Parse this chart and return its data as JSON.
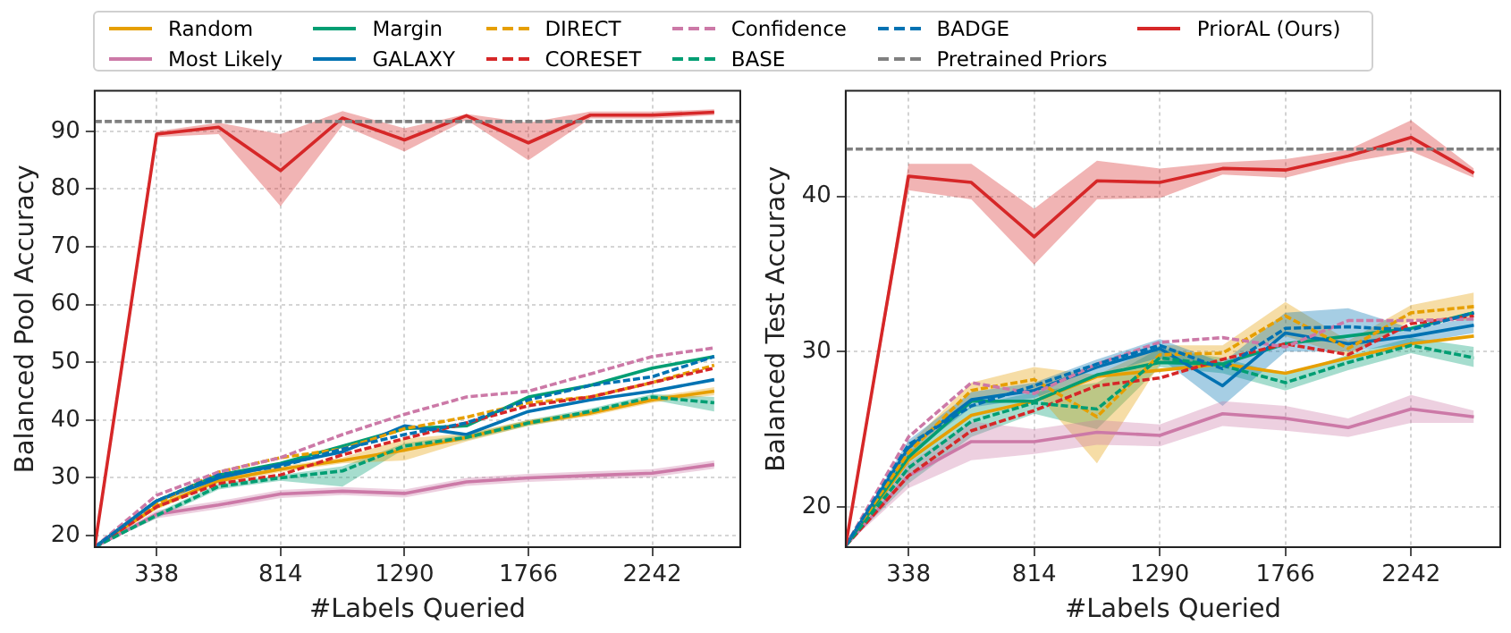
{
  "chart_data": [
    {
      "type": "line",
      "xlabel": "#Labels Queried",
      "ylabel": "Balanced Pool Accuracy",
      "legend": "top",
      "grid": true,
      "xlim": [
        100,
        2580
      ],
      "xticks": [
        338,
        814,
        1290,
        1766,
        2242
      ],
      "ylim": [
        18,
        97
      ],
      "yticks": [
        20,
        30,
        40,
        50,
        60,
        70,
        80,
        90
      ],
      "x": [
        100,
        338,
        576,
        814,
        1052,
        1290,
        1528,
        1766,
        2004,
        2242,
        2480
      ],
      "ref_lines": [
        {
          "axis": "y",
          "value": 91.7,
          "label": "Pretrained Priors",
          "color": "#808080",
          "line_style": "dashed"
        }
      ],
      "series": [
        {
          "name": "Random",
          "color": "#e69f00",
          "line_style": "solid",
          "values": [
            18,
            25,
            29.5,
            31.5,
            33,
            34.8,
            37,
            39.5,
            41.2,
            43.5,
            45
          ],
          "lower": [
            18,
            24.5,
            29,
            31,
            32.5,
            33,
            36.3,
            39,
            40.7,
            43,
            44.3
          ],
          "upper": [
            18,
            25.5,
            30,
            32,
            33.5,
            36.8,
            37.7,
            40,
            41.7,
            44,
            45.7
          ]
        },
        {
          "name": "Most Likely",
          "color": "#cc79a7",
          "line_style": "solid",
          "values": [
            18,
            23.7,
            25.3,
            27.2,
            27.7,
            27.3,
            29.3,
            30,
            30.4,
            30.8,
            32.3
          ],
          "lower": [
            18,
            23,
            24.6,
            26.5,
            27,
            26.6,
            28.6,
            29.3,
            29.7,
            30.1,
            31.6
          ],
          "upper": [
            18,
            24.4,
            26,
            27.9,
            28.4,
            28,
            30,
            30.7,
            31.1,
            31.5,
            33
          ]
        },
        {
          "name": "Margin",
          "color": "#009e73",
          "line_style": "solid",
          "values": [
            18,
            26,
            30.5,
            32.5,
            35.5,
            38.5,
            39,
            44,
            46,
            49,
            51
          ]
        },
        {
          "name": "GALAXY",
          "color": "#0072b2",
          "line_style": "solid",
          "values": [
            18,
            26,
            30,
            32.3,
            34.5,
            39,
            37.5,
            41.5,
            43.5,
            45,
            47
          ]
        },
        {
          "name": "DIRECT",
          "color": "#e69f00",
          "line_style": "dashed",
          "values": [
            18,
            25.5,
            31,
            33.5,
            35,
            38.5,
            40.5,
            43,
            44,
            46.5,
            49.5
          ]
        },
        {
          "name": "CORESET",
          "color": "#d62728",
          "line_style": "dashed",
          "values": [
            18,
            25,
            29,
            30.5,
            34,
            36.8,
            39.5,
            42.5,
            44,
            46.5,
            49
          ]
        },
        {
          "name": "Confidence",
          "color": "#cc79a7",
          "line_style": "dashed",
          "values": [
            18,
            27,
            31,
            33.5,
            37.5,
            41,
            44,
            45,
            48,
            51,
            52.5
          ]
        },
        {
          "name": "BASE",
          "color": "#009e73",
          "line_style": "dashed",
          "values": [
            18,
            23.5,
            28.5,
            30,
            31.2,
            35.5,
            37,
            39.5,
            41.5,
            44,
            43
          ],
          "lower": [
            18,
            23,
            28,
            29.5,
            28.5,
            35,
            36.5,
            39,
            41,
            43.5,
            41.5
          ],
          "upper": [
            18,
            24,
            29,
            30.5,
            32,
            36,
            37.5,
            40,
            42,
            44.5,
            44
          ]
        },
        {
          "name": "BADGE",
          "color": "#0072b2",
          "line_style": "dashed",
          "values": [
            18,
            26,
            30.5,
            32,
            35,
            37.5,
            39.5,
            43.5,
            46,
            47.5,
            51
          ]
        },
        {
          "name": "PriorAL (Ours)",
          "color": "#d62728",
          "line_style": "solid",
          "values": [
            18,
            89.5,
            90.7,
            83.2,
            92.3,
            88.5,
            92.7,
            88,
            92.8,
            92.8,
            93.3
          ],
          "lower": [
            18,
            89,
            89.5,
            77,
            91,
            86.5,
            92,
            85,
            92.2,
            92.2,
            92.8
          ],
          "upper": [
            18,
            90,
            91.5,
            89.5,
            93.5,
            90.5,
            93,
            91.5,
            93.4,
            93.4,
            93.8
          ]
        }
      ]
    },
    {
      "type": "line",
      "xlabel": "#Labels Queried",
      "ylabel": "Balanced Test Accuracy",
      "grid": true,
      "xlim": [
        100,
        2580
      ],
      "xticks": [
        338,
        814,
        1290,
        1766,
        2242
      ],
      "ylim": [
        17.4,
        46.8
      ],
      "yticks": [
        20,
        30,
        40
      ],
      "x": [
        100,
        338,
        576,
        814,
        1052,
        1290,
        1528,
        1766,
        2004,
        2242,
        2480
      ],
      "ref_lines": [
        {
          "axis": "y",
          "value": 43.05,
          "color": "#808080",
          "line_style": "dashed"
        }
      ],
      "series": [
        {
          "color": "#e69f00",
          "line_style": "solid",
          "values": [
            17.5,
            23,
            25.9,
            26.8,
            28.4,
            28.8,
            29.2,
            28.6,
            29.6,
            30.5,
            31
          ]
        },
        {
          "color": "#cc79a7",
          "line_style": "solid",
          "values": [
            17.5,
            22,
            24.2,
            24.2,
            24.8,
            24.6,
            26,
            25.7,
            25.1,
            26.3,
            25.8
          ],
          "lower": [
            17.5,
            21.2,
            23,
            23.4,
            24,
            23.9,
            25.2,
            24.9,
            24.5,
            25.4,
            25.4
          ],
          "upper": [
            17.5,
            22.8,
            25.5,
            25,
            25.6,
            25.3,
            26.8,
            26.5,
            25.7,
            27.2,
            26.2
          ]
        },
        {
          "color": "#009e73",
          "line_style": "solid",
          "values": [
            17.5,
            23.2,
            26.8,
            26.8,
            28.5,
            29.3,
            29.2,
            30.5,
            31,
            31.5,
            32.5
          ]
        },
        {
          "color": "#0072b2",
          "line_style": "solid",
          "values": [
            17.5,
            23.8,
            26.9,
            27.5,
            29,
            30.2,
            27.8,
            31.2,
            30.5,
            31,
            31.7
          ],
          "lower": [
            17.5,
            23.3,
            26.4,
            27,
            28.5,
            29.6,
            26.5,
            30,
            30,
            30.5,
            31.2
          ],
          "upper": [
            17.5,
            24.3,
            27.4,
            28,
            29.5,
            30.8,
            29.3,
            32.5,
            32.8,
            31.5,
            32.2
          ]
        },
        {
          "color": "#e69f00",
          "line_style": "dashed",
          "values": [
            17.5,
            23.5,
            27.5,
            28.2,
            25.8,
            29.8,
            29.9,
            32.3,
            30.2,
            32.5,
            32.9
          ],
          "lower": [
            17.5,
            23,
            27,
            27.5,
            22.8,
            29.2,
            29.4,
            31,
            29.7,
            32,
            32
          ],
          "upper": [
            17.5,
            24,
            28,
            29,
            28.5,
            30.4,
            30.4,
            33.2,
            30.7,
            33,
            33.8
          ]
        },
        {
          "color": "#d62728",
          "line_style": "dashed",
          "values": [
            17.5,
            22,
            24.9,
            26.2,
            27.8,
            28.3,
            29.5,
            30.5,
            29.8,
            31.8,
            32.3
          ]
        },
        {
          "color": "#cc79a7",
          "line_style": "dashed",
          "values": [
            17.5,
            24.5,
            28,
            27.3,
            29.2,
            30.6,
            30.9,
            30.3,
            32,
            32,
            32.1
          ]
        },
        {
          "color": "#009e73",
          "line_style": "dashed",
          "values": [
            17.5,
            22.5,
            25.5,
            26.7,
            26.3,
            29.6,
            29.1,
            28,
            29.3,
            30.4,
            29.6
          ],
          "lower": [
            17.5,
            21.5,
            24.5,
            26,
            25,
            29,
            28.6,
            27.5,
            28.8,
            29.9,
            29
          ],
          "upper": [
            17.5,
            23.5,
            26.5,
            27.4,
            28,
            30.2,
            29.6,
            28.5,
            29.8,
            30.9,
            30.3
          ]
        },
        {
          "color": "#0072b2",
          "line_style": "dashed",
          "values": [
            17.5,
            24,
            26.5,
            27.8,
            29.2,
            30.4,
            28.9,
            31.5,
            31.6,
            31.4,
            32.5
          ]
        },
        {
          "color": "#d62728",
          "line_style": "solid",
          "values": [
            17.5,
            41.3,
            40.9,
            37.4,
            41,
            40.9,
            41.8,
            41.7,
            42.6,
            43.8,
            41.5
          ],
          "lower": [
            17.5,
            40.4,
            39.8,
            35.6,
            39.8,
            39.9,
            41.4,
            41.2,
            42.2,
            42.9,
            41.2
          ],
          "upper": [
            17.5,
            42.1,
            42.1,
            39.2,
            42.3,
            41.8,
            42.2,
            42.4,
            43,
            44.9,
            41.8
          ]
        }
      ]
    }
  ]
}
